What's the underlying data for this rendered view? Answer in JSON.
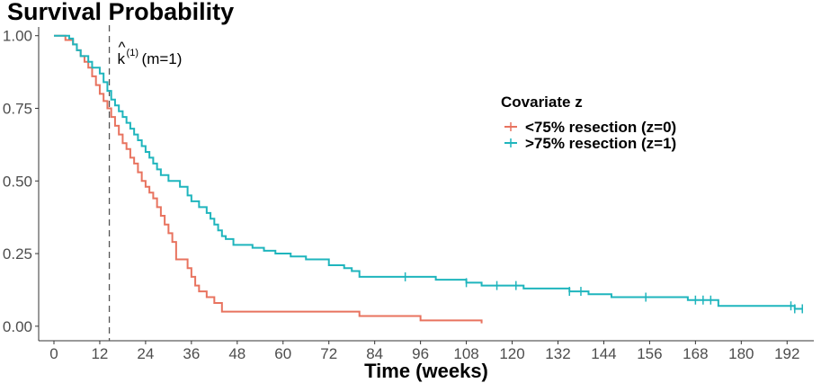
{
  "chart_data": {
    "type": "line",
    "title": "Survival Probability",
    "xlabel": "Time (weeks)",
    "ylabel": "",
    "xlim": [
      -4,
      199
    ],
    "ylim": [
      -0.05,
      1.03
    ],
    "x_ticks": [
      0,
      12,
      24,
      36,
      48,
      60,
      72,
      84,
      96,
      108,
      120,
      132,
      144,
      156,
      168,
      180,
      192
    ],
    "y_ticks": [
      0.0,
      0.25,
      0.5,
      0.75,
      1.0
    ],
    "y_tick_labels": [
      "0.00",
      "0.25",
      "0.50",
      "0.75",
      "1.00"
    ],
    "grid": false,
    "legend": {
      "title": "Covariate z",
      "position": "right"
    },
    "annotation": {
      "x": 14.5,
      "text_main": "k",
      "text_hat": "^",
      "text_sup": "(1)",
      "text_after": " (m=1)"
    },
    "series": [
      {
        "name": "<75% resection (z=0)",
        "color": "#E8735F",
        "steps": [
          [
            0,
            1.0
          ],
          [
            3,
            0.985
          ],
          [
            5,
            0.97
          ],
          [
            6,
            0.95
          ],
          [
            7,
            0.93
          ],
          [
            8,
            0.91
          ],
          [
            9,
            0.89
          ],
          [
            10,
            0.86
          ],
          [
            11,
            0.83
          ],
          [
            12,
            0.8
          ],
          [
            13,
            0.775
          ],
          [
            14,
            0.75
          ],
          [
            15,
            0.72
          ],
          [
            16,
            0.69
          ],
          [
            17,
            0.66
          ],
          [
            18,
            0.63
          ],
          [
            19,
            0.61
          ],
          [
            20,
            0.58
          ],
          [
            21,
            0.56
          ],
          [
            22,
            0.53
          ],
          [
            23,
            0.5
          ],
          [
            24,
            0.48
          ],
          [
            25,
            0.46
          ],
          [
            26,
            0.44
          ],
          [
            27,
            0.41
          ],
          [
            28,
            0.38
          ],
          [
            29,
            0.35
          ],
          [
            30,
            0.32
          ],
          [
            31,
            0.29
          ],
          [
            32,
            0.23
          ],
          [
            35,
            0.2
          ],
          [
            36,
            0.17
          ],
          [
            37,
            0.14
          ],
          [
            38,
            0.12
          ],
          [
            40,
            0.1
          ],
          [
            42,
            0.08
          ],
          [
            44,
            0.05
          ],
          [
            80,
            0.035
          ],
          [
            96,
            0.02
          ],
          [
            112,
            0.01
          ]
        ],
        "end_x": 112,
        "censor_x": []
      },
      {
        "name": ">75% resection (z=1)",
        "color": "#1FB5BD",
        "steps": [
          [
            0,
            1.0
          ],
          [
            4,
            0.99
          ],
          [
            5,
            0.97
          ],
          [
            6,
            0.95
          ],
          [
            7,
            0.93
          ],
          [
            9,
            0.91
          ],
          [
            10,
            0.89
          ],
          [
            12,
            0.87
          ],
          [
            13,
            0.84
          ],
          [
            14,
            0.81
          ],
          [
            15,
            0.78
          ],
          [
            16,
            0.76
          ],
          [
            17,
            0.74
          ],
          [
            18,
            0.72
          ],
          [
            19,
            0.7
          ],
          [
            20,
            0.68
          ],
          [
            21,
            0.66
          ],
          [
            22,
            0.64
          ],
          [
            23,
            0.62
          ],
          [
            24,
            0.6
          ],
          [
            25,
            0.58
          ],
          [
            26,
            0.56
          ],
          [
            27,
            0.54
          ],
          [
            28,
            0.52
          ],
          [
            30,
            0.5
          ],
          [
            33,
            0.48
          ],
          [
            35,
            0.45
          ],
          [
            36,
            0.43
          ],
          [
            38,
            0.41
          ],
          [
            40,
            0.39
          ],
          [
            41,
            0.37
          ],
          [
            42,
            0.35
          ],
          [
            43,
            0.33
          ],
          [
            44,
            0.31
          ],
          [
            45,
            0.3
          ],
          [
            47,
            0.28
          ],
          [
            52,
            0.27
          ],
          [
            55,
            0.26
          ],
          [
            58,
            0.25
          ],
          [
            62,
            0.24
          ],
          [
            66,
            0.23
          ],
          [
            72,
            0.21
          ],
          [
            76,
            0.2
          ],
          [
            78,
            0.19
          ],
          [
            80,
            0.17
          ],
          [
            100,
            0.16
          ],
          [
            108,
            0.15
          ],
          [
            112,
            0.14
          ],
          [
            123,
            0.13
          ],
          [
            135,
            0.12
          ],
          [
            140,
            0.11
          ],
          [
            146,
            0.1
          ],
          [
            166,
            0.09
          ],
          [
            174,
            0.07
          ],
          [
            194,
            0.06
          ]
        ],
        "end_x": 196,
        "censor_x": [
          92,
          108,
          116,
          121,
          135,
          138,
          155,
          168,
          170,
          172,
          193,
          194,
          196
        ]
      }
    ]
  }
}
